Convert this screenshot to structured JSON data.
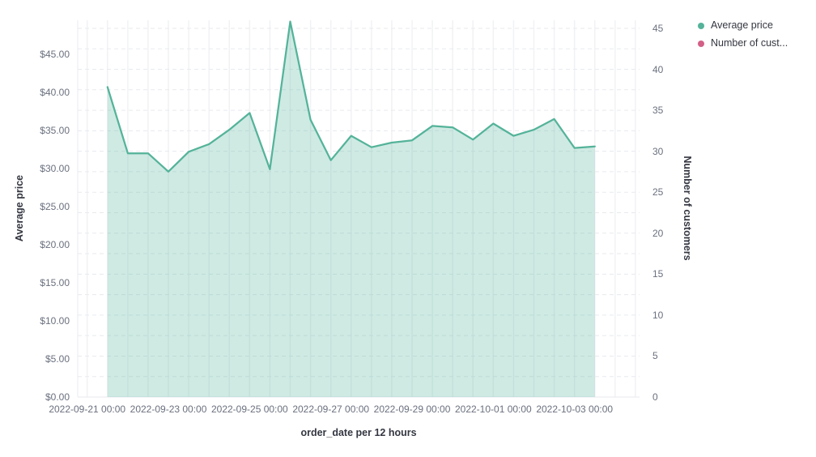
{
  "legend": {
    "items": [
      {
        "label": "Average price",
        "color": "#54B399"
      },
      {
        "label": "Number of cust...",
        "color": "#D36086"
      }
    ]
  },
  "chart_data": {
    "type": "area",
    "title": "",
    "legend_position": "top-right",
    "grid": {
      "horizontal": "dashed",
      "vertical": "solid"
    },
    "x_axis": {
      "title": "order_date per 12 hours",
      "interval": "12 hours",
      "tick_labels": [
        "2022-09-21 00:00",
        "2022-09-23 00:00",
        "2022-09-25 00:00",
        "2022-09-27 00:00",
        "2022-09-29 00:00",
        "2022-10-01 00:00",
        "2022-10-03 00:00"
      ]
    },
    "y_axis_left": {
      "title": "Average price",
      "tick_labels": [
        "$0.00",
        "$5.00",
        "$10.00",
        "$15.00",
        "$20.00",
        "$25.00",
        "$30.00",
        "$35.00",
        "$40.00",
        "$45.00"
      ],
      "range": [
        0,
        49.5
      ]
    },
    "y_axis_right": {
      "title": "Number of customers",
      "tick_labels": [
        "0",
        "5",
        "10",
        "15",
        "20",
        "25",
        "30",
        "35",
        "40",
        "45"
      ],
      "range": [
        0,
        46
      ]
    },
    "series": [
      {
        "name": "Average price",
        "type": "area",
        "axis": "left",
        "color": "#54B399",
        "fill_opacity": 0.28,
        "x": [
          "2022-09-21 12:00",
          "2022-09-22 00:00",
          "2022-09-22 12:00",
          "2022-09-23 00:00",
          "2022-09-23 12:00",
          "2022-09-24 00:00",
          "2022-09-24 12:00",
          "2022-09-25 00:00",
          "2022-09-25 12:00",
          "2022-09-26 00:00",
          "2022-09-26 12:00",
          "2022-09-27 00:00",
          "2022-09-27 12:00",
          "2022-09-28 00:00",
          "2022-09-28 12:00",
          "2022-09-29 00:00",
          "2022-09-29 12:00",
          "2022-09-30 00:00",
          "2022-09-30 12:00",
          "2022-10-01 00:00",
          "2022-10-01 12:00",
          "2022-10-02 00:00",
          "2022-10-02 12:00",
          "2022-10-03 00:00",
          "2022-10-03 12:00"
        ],
        "values": [
          40.7,
          32.0,
          32.0,
          29.6,
          32.2,
          33.2,
          35.1,
          37.3,
          29.9,
          49.3,
          36.4,
          31.1,
          34.3,
          32.8,
          33.4,
          33.7,
          35.6,
          35.4,
          33.8,
          35.9,
          34.3,
          35.1,
          36.5,
          32.7,
          32.9
        ]
      },
      {
        "name": "Number of customers",
        "type": "line",
        "axis": "right",
        "color": "#D36086",
        "x": [],
        "values": []
      }
    ]
  }
}
